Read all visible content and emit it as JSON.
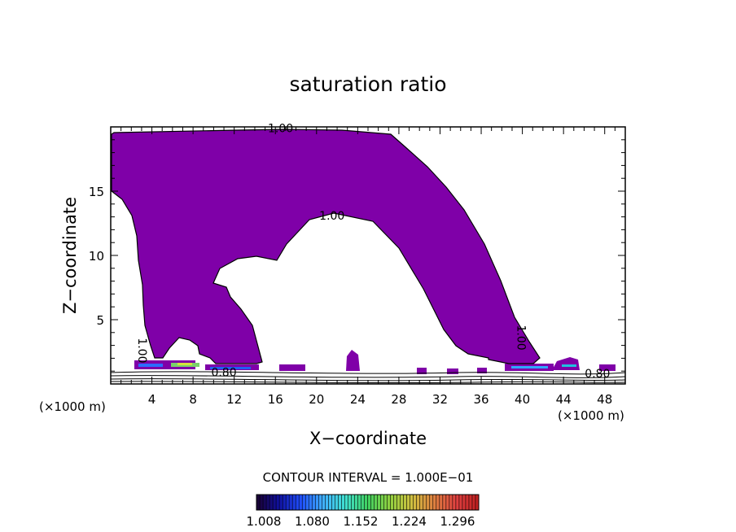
{
  "chart_data": {
    "type": "heatmap",
    "title": "saturation ratio",
    "xlabel": "X−coordinate",
    "ylabel": "Z−coordinate",
    "x_unit_left": "(×1000 m)",
    "x_unit_right": "(×1000 m)",
    "xlim": [
      0,
      50
    ],
    "ylim": [
      0,
      20
    ],
    "x_ticks": [
      4,
      8,
      12,
      16,
      20,
      24,
      28,
      32,
      36,
      40,
      44,
      48
    ],
    "y_ticks": [
      5,
      10,
      15
    ],
    "contour_interval_text": "CONTOUR INTERVAL = 1.000E−01",
    "contour_labels": [
      {
        "text": "1.00",
        "x": 16.5,
        "z": 19.6
      },
      {
        "text": "1.00",
        "x": 21.5,
        "z": 12.8
      },
      {
        "text": "1.00",
        "x": 39.5,
        "z": 3.6
      },
      {
        "text": "1.00",
        "x": 2.7,
        "z": 2.6
      },
      {
        "text": "0.80",
        "x": 11.0,
        "z": 0.6
      },
      {
        "text": "0.80",
        "x": 47.3,
        "z": 0.5
      }
    ],
    "colorbar": {
      "tick_labels": [
        "1.008",
        "1.080",
        "1.152",
        "1.224",
        "1.296"
      ],
      "colors": [
        "#1a0030",
        "#1010a0",
        "#2050ff",
        "#40b0ff",
        "#40e0d0",
        "#40d060",
        "#90d040",
        "#d0c040",
        "#e08040",
        "#e04040",
        "#c02020"
      ]
    },
    "region_color": "#7f00a8"
  }
}
